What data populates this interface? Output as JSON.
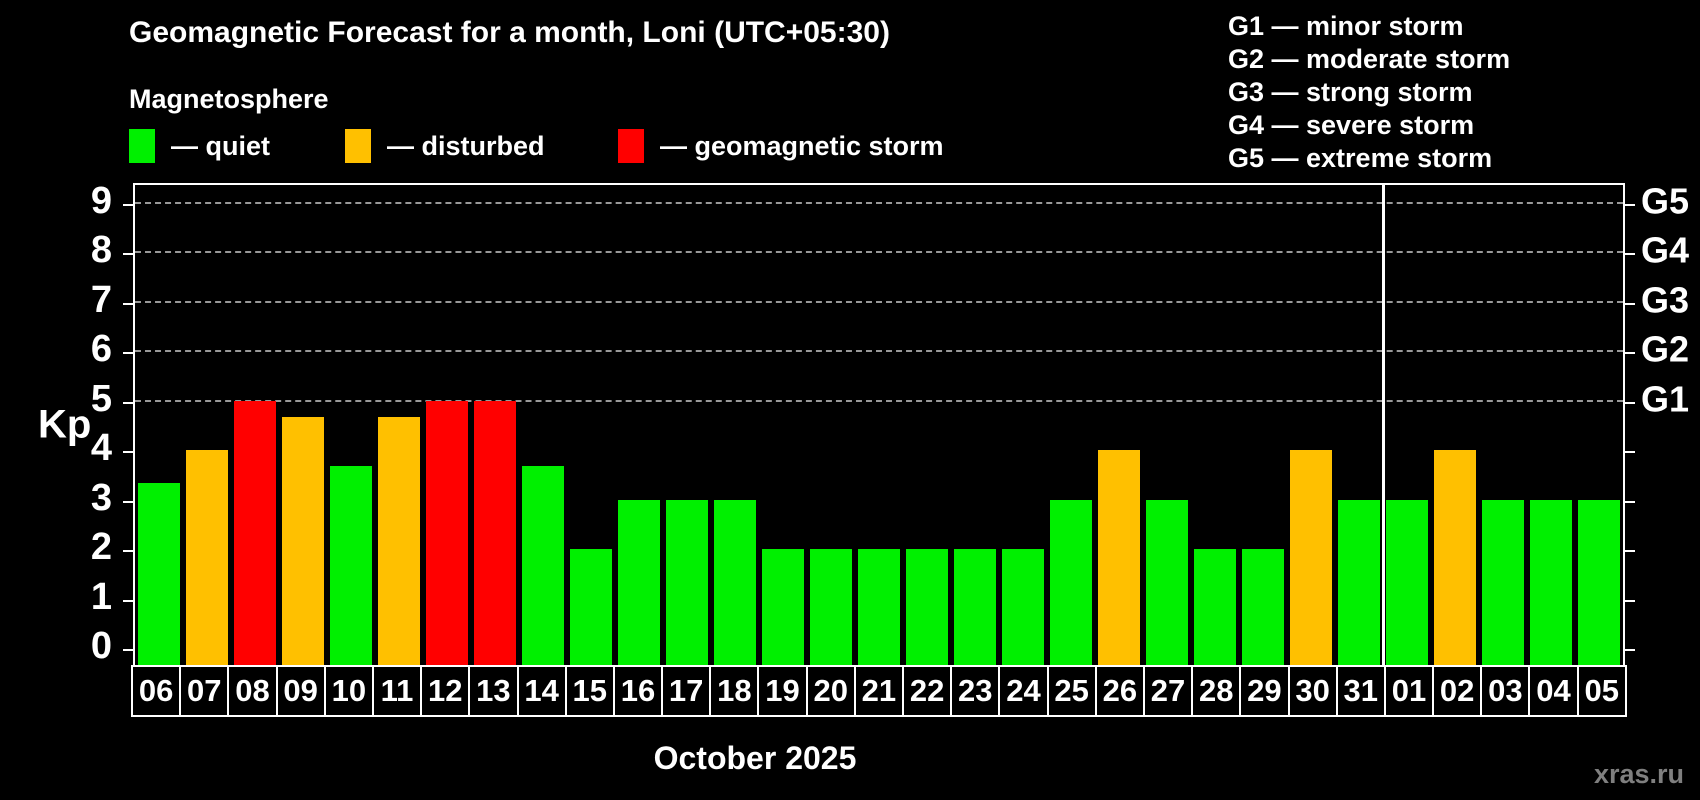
{
  "header": {
    "title": "Geomagnetic Forecast for a month, Loni (UTC+05:30)",
    "subtitle": "Magnetosphere"
  },
  "legend": {
    "dash": "—",
    "items": [
      {
        "label": "quiet",
        "status": "quiet",
        "color": "#00f000"
      },
      {
        "label": "disturbed",
        "status": "disturbed",
        "color": "#ffc000"
      },
      {
        "label": "geomagnetic storm",
        "status": "storm",
        "color": "#ff0000"
      }
    ]
  },
  "storm_scale_legend": [
    {
      "level": "G1",
      "desc": "minor storm"
    },
    {
      "level": "G2",
      "desc": "moderate storm"
    },
    {
      "level": "G3",
      "desc": "strong storm"
    },
    {
      "level": "G4",
      "desc": "severe storm"
    },
    {
      "level": "G5",
      "desc": "extreme storm"
    }
  ],
  "chart_data": {
    "type": "bar",
    "title": "Geomagnetic Forecast for a month, Loni (UTC+05:30)",
    "ylabel": "Kp",
    "ylim": [
      0,
      9
    ],
    "yticks": [
      0,
      1,
      2,
      3,
      4,
      5,
      6,
      7,
      8,
      9
    ],
    "gridlines_at": [
      5,
      6,
      7,
      8,
      9
    ],
    "grid": "dashed horizontal at G-storm levels only",
    "legend_position": "top-left",
    "right_axis_labels": [
      {
        "kp": 5,
        "label": "G1"
      },
      {
        "kp": 6,
        "label": "G2"
      },
      {
        "kp": 7,
        "label": "G3"
      },
      {
        "kp": 8,
        "label": "G4"
      },
      {
        "kp": 9,
        "label": "G5"
      }
    ],
    "categories": [
      "06",
      "07",
      "08",
      "09",
      "10",
      "11",
      "12",
      "13",
      "14",
      "15",
      "16",
      "17",
      "18",
      "19",
      "20",
      "21",
      "22",
      "23",
      "24",
      "25",
      "26",
      "27",
      "28",
      "29",
      "30",
      "31",
      "01",
      "02",
      "03",
      "04",
      "05"
    ],
    "values": [
      3.33,
      4,
      5,
      4.67,
      3.67,
      4.67,
      5,
      5,
      3.67,
      2,
      3,
      3,
      3,
      2,
      2,
      2,
      2,
      2,
      2,
      3,
      4,
      3,
      2,
      2,
      4,
      3,
      3,
      4,
      3,
      3,
      3
    ],
    "statuses": [
      "quiet",
      "disturbed",
      "storm",
      "disturbed",
      "quiet",
      "disturbed",
      "storm",
      "storm",
      "quiet",
      "quiet",
      "quiet",
      "quiet",
      "quiet",
      "quiet",
      "quiet",
      "quiet",
      "quiet",
      "quiet",
      "quiet",
      "quiet",
      "disturbed",
      "quiet",
      "quiet",
      "quiet",
      "disturbed",
      "quiet",
      "quiet",
      "disturbed",
      "quiet",
      "quiet",
      "quiet"
    ],
    "status_colors": {
      "quiet": "#00f000",
      "disturbed": "#ffc000",
      "storm": "#ff0000"
    },
    "month_divider_after_index": 25,
    "xlabel_caption": "October 2025"
  },
  "footer": {
    "caption": "October 2025",
    "watermark": "xras.ru"
  }
}
